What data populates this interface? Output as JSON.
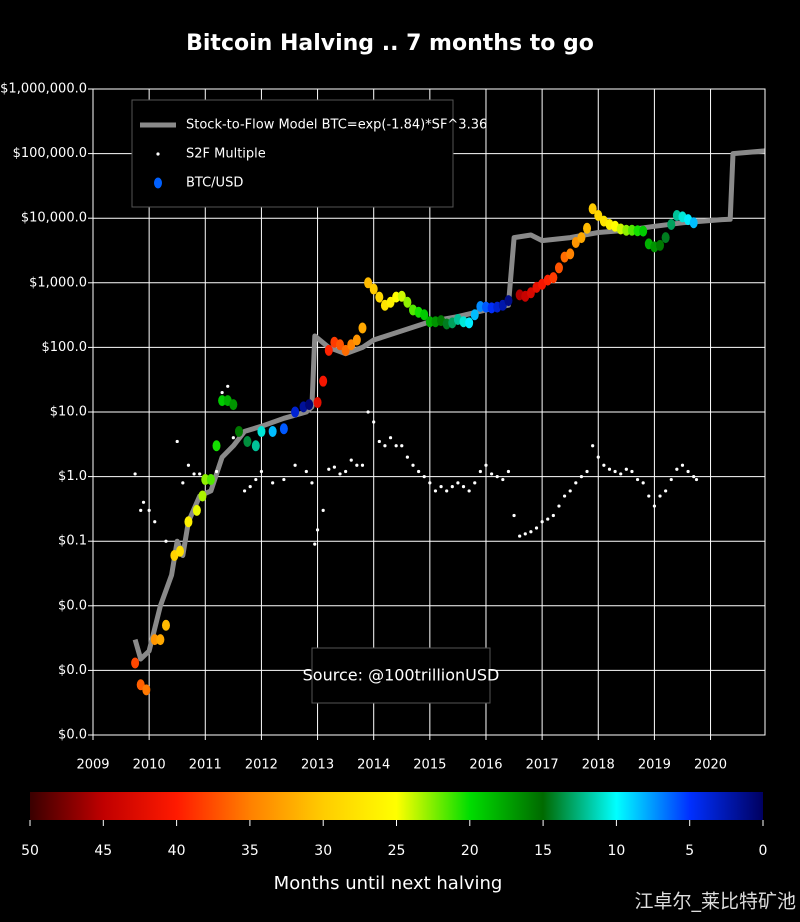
{
  "chart_data": {
    "type": "line",
    "title": "Bitcoin Halving .. 7 months to go",
    "annotation": "Source: @100trillionUSD",
    "watermark": "江卓尔_莱比特矿池",
    "log_y": true,
    "grid": true,
    "legend": "upper left",
    "xlim": [
      2009,
      2020.97
    ],
    "xticks": [
      2009,
      2010,
      2011,
      2012,
      2013,
      2014,
      2015,
      2016,
      2017,
      2018,
      2019,
      2020
    ],
    "ylim": [
      0.0001,
      1000000
    ],
    "yticks": [
      {
        "value": 0.0001,
        "label": "$0.0"
      },
      {
        "value": 0.001,
        "label": "$0.0"
      },
      {
        "value": 0.01,
        "label": "$0.0"
      },
      {
        "value": 0.1,
        "label": "$0.1"
      },
      {
        "value": 1,
        "label": "$1.0"
      },
      {
        "value": 10,
        "label": "$10.0"
      },
      {
        "value": 100,
        "label": "$100.0"
      },
      {
        "value": 1000,
        "label": "$1,000.0"
      },
      {
        "value": 10000,
        "label": "$10,000.0"
      },
      {
        "value": 100000,
        "label": "$100,000.0"
      },
      {
        "value": 1000000,
        "label": "$1,000,000.0"
      }
    ],
    "series": [
      {
        "name": "Stock-to-Flow Model BTC=exp(-1.84)*SF^3.36",
        "color": "#8a8a8a",
        "kind": "line",
        "x": [
          2009.75,
          2009.85,
          2010.0,
          2010.2,
          2010.4,
          2010.5,
          2010.6,
          2010.7,
          2010.9,
          2011.1,
          2011.3,
          2011.5,
          2011.7,
          2012.0,
          2012.4,
          2012.8,
          2012.9,
          2012.95,
          2013.2,
          2013.5,
          2013.8,
          2014.0,
          2014.5,
          2015.0,
          2015.5,
          2016.0,
          2016.4,
          2016.5,
          2016.8,
          2017.0,
          2017.5,
          2018.0,
          2018.5,
          2019.0,
          2019.5,
          2020.2,
          2020.35,
          2020.4,
          2020.97
        ],
        "values": [
          0.003,
          0.0015,
          0.002,
          0.01,
          0.03,
          0.1,
          0.06,
          0.2,
          0.5,
          0.6,
          2,
          3,
          5,
          6,
          8,
          10,
          12,
          150,
          100,
          80,
          100,
          130,
          180,
          250,
          300,
          380,
          450,
          5000,
          5500,
          4500,
          5000,
          6000,
          6500,
          7500,
          8500,
          9500,
          9600,
          100000,
          110000
        ]
      },
      {
        "name": "S2F Multiple",
        "color": "#ffffff",
        "kind": "dots",
        "x": [
          2009.75,
          2009.85,
          2009.9,
          2010.0,
          2010.1,
          2010.3,
          2010.5,
          2010.6,
          2010.7,
          2010.8,
          2010.9,
          2011.0,
          2011.2,
          2011.3,
          2011.4,
          2011.5,
          2011.7,
          2011.8,
          2011.9,
          2012.0,
          2012.2,
          2012.4,
          2012.6,
          2012.8,
          2012.9,
          2012.95,
          2013.0,
          2013.1,
          2013.2,
          2013.3,
          2013.4,
          2013.5,
          2013.6,
          2013.7,
          2013.8,
          2013.9,
          2014.0,
          2014.1,
          2014.2,
          2014.3,
          2014.4,
          2014.5,
          2014.6,
          2014.7,
          2014.8,
          2014.9,
          2015.0,
          2015.1,
          2015.2,
          2015.3,
          2015.4,
          2015.5,
          2015.6,
          2015.7,
          2015.8,
          2015.9,
          2016.0,
          2016.1,
          2016.2,
          2016.3,
          2016.4,
          2016.5,
          2016.6,
          2016.7,
          2016.8,
          2016.9,
          2017.0,
          2017.1,
          2017.2,
          2017.3,
          2017.4,
          2017.5,
          2017.6,
          2017.7,
          2017.8,
          2017.9,
          2018.0,
          2018.1,
          2018.2,
          2018.3,
          2018.4,
          2018.5,
          2018.6,
          2018.7,
          2018.8,
          2018.9,
          2019.0,
          2019.1,
          2019.2,
          2019.3,
          2019.4,
          2019.5,
          2019.6,
          2019.7,
          2019.75
        ],
        "values": [
          1.1,
          0.3,
          0.4,
          0.3,
          0.2,
          0.1,
          3.5,
          0.8,
          1.5,
          1.1,
          1.1,
          1,
          1.2,
          20,
          25,
          4,
          0.6,
          0.7,
          0.9,
          1.2,
          0.8,
          0.9,
          1.5,
          1.2,
          0.8,
          0.09,
          0.15,
          0.3,
          1.3,
          1.4,
          1.1,
          1.2,
          1.8,
          1.5,
          1.5,
          10,
          7,
          3.5,
          3,
          4,
          3,
          3,
          2,
          1.5,
          1.2,
          1,
          0.8,
          0.6,
          0.7,
          0.6,
          0.7,
          0.8,
          0.7,
          0.6,
          0.8,
          1.2,
          1.5,
          1.1,
          1,
          0.9,
          1.2,
          0.25,
          0.12,
          0.13,
          0.14,
          0.16,
          0.2,
          0.22,
          0.25,
          0.35,
          0.5,
          0.6,
          0.8,
          1,
          1.2,
          3,
          2,
          1.5,
          1.3,
          1.2,
          1.1,
          1.3,
          1.2,
          0.9,
          0.8,
          0.5,
          0.35,
          0.5,
          0.6,
          0.9,
          1.3,
          1.5,
          1.2,
          1,
          0.9
        ]
      },
      {
        "name": "BTC/USD",
        "color": "#0060ff",
        "kind": "colored",
        "x": [
          2009.75,
          2009.85,
          2009.95,
          2010.1,
          2010.2,
          2010.3,
          2010.45,
          2010.55,
          2010.7,
          2010.85,
          2010.95,
          2011.0,
          2011.1,
          2011.2,
          2011.3,
          2011.4,
          2011.5,
          2011.6,
          2011.75,
          2011.9,
          2012.0,
          2012.2,
          2012.4,
          2012.6,
          2012.75,
          2012.85,
          2013.0,
          2013.1,
          2013.2,
          2013.3,
          2013.4,
          2013.5,
          2013.6,
          2013.7,
          2013.8,
          2013.9,
          2014.0,
          2014.1,
          2014.2,
          2014.3,
          2014.4,
          2014.5,
          2014.6,
          2014.7,
          2014.8,
          2014.9,
          2015.0,
          2015.1,
          2015.2,
          2015.3,
          2015.4,
          2015.5,
          2015.6,
          2015.7,
          2015.8,
          2015.9,
          2016.0,
          2016.1,
          2016.2,
          2016.3,
          2016.4,
          2016.6,
          2016.7,
          2016.8,
          2016.9,
          2017.0,
          2017.1,
          2017.2,
          2017.3,
          2017.4,
          2017.5,
          2017.6,
          2017.7,
          2017.8,
          2017.9,
          2018.0,
          2018.1,
          2018.2,
          2018.3,
          2018.4,
          2018.5,
          2018.6,
          2018.7,
          2018.8,
          2018.9,
          2019.0,
          2019.1,
          2019.2,
          2019.3,
          2019.4,
          2019.5,
          2019.6,
          2019.7
        ],
        "values": [
          0.0013,
          0.0006,
          0.0005,
          0.003,
          0.003,
          0.005,
          0.06,
          0.07,
          0.2,
          0.3,
          0.5,
          0.9,
          0.9,
          3,
          15,
          15,
          13,
          5,
          3.5,
          3,
          5,
          5,
          5.5,
          10,
          12,
          13,
          14,
          30,
          90,
          120,
          110,
          90,
          110,
          130,
          200,
          1000,
          800,
          600,
          450,
          500,
          600,
          620,
          500,
          380,
          350,
          320,
          250,
          250,
          260,
          230,
          240,
          270,
          250,
          240,
          320,
          430,
          420,
          410,
          420,
          450,
          530,
          650,
          620,
          700,
          850,
          950,
          1100,
          1200,
          1700,
          2500,
          2800,
          4200,
          5000,
          7000,
          14000,
          11000,
          9000,
          8000,
          7500,
          6800,
          6500,
          6500,
          6400,
          6300,
          4000,
          3600,
          3800,
          5000,
          8000,
          11000,
          10500,
          9500,
          8500
        ],
        "months": [
          37.8,
          36.6,
          35.4,
          33.6,
          32.4,
          31.2,
          29.4,
          28.2,
          26.4,
          24.6,
          23.4,
          22.8,
          21.6,
          20.4,
          19.2,
          18,
          16.8,
          15.6,
          13.8,
          12,
          10.8,
          8.4,
          6,
          3.6,
          1.8,
          0.6,
          42,
          40.8,
          39.6,
          38.4,
          37.2,
          36,
          34.8,
          33.6,
          32.4,
          31.2,
          30,
          28.8,
          27.6,
          26.4,
          25.2,
          24,
          22.8,
          21.6,
          20.4,
          19.2,
          18,
          16.8,
          15.6,
          14.4,
          13.2,
          12,
          10.8,
          9.6,
          8.4,
          7.2,
          6,
          4.8,
          3.6,
          2.4,
          1.2,
          45.6,
          44.4,
          43.2,
          42,
          40.8,
          39.6,
          38.4,
          37.2,
          36,
          34.8,
          33.6,
          32.4,
          31.2,
          30,
          28.8,
          27.6,
          26.4,
          25.2,
          24,
          22.8,
          21.6,
          20.4,
          19.2,
          18,
          16.8,
          15.6,
          14.4,
          13.2,
          12,
          10.8,
          9.6,
          8.4
        ]
      }
    ],
    "colorbar": {
      "label": "Months until next halving",
      "lim": [
        50,
        0
      ],
      "ticks": [
        50,
        45,
        40,
        35,
        30,
        25,
        20,
        15,
        10,
        5,
        0
      ],
      "stops": [
        {
          "value": 50,
          "color": "#3a0000"
        },
        {
          "value": 45,
          "color": "#c00000"
        },
        {
          "value": 40,
          "color": "#ff1a00"
        },
        {
          "value": 35,
          "color": "#ff8000"
        },
        {
          "value": 30,
          "color": "#ffcc00"
        },
        {
          "value": 25,
          "color": "#ffff00"
        },
        {
          "value": 20,
          "color": "#00dd00"
        },
        {
          "value": 15,
          "color": "#006a00"
        },
        {
          "value": 10,
          "color": "#00ffff"
        },
        {
          "value": 5,
          "color": "#0030ff"
        },
        {
          "value": 0,
          "color": "#000060"
        }
      ]
    }
  }
}
